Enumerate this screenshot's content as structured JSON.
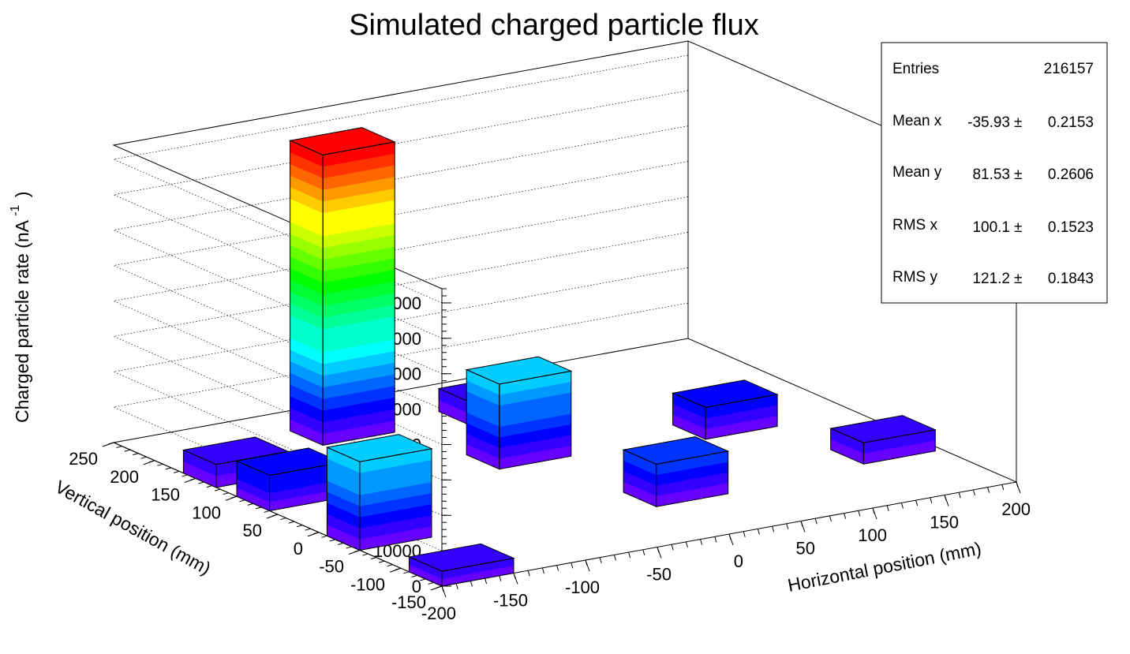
{
  "chart_data": {
    "type": "lego3d",
    "title": "Simulated charged particle flux",
    "xlabel": "Horizontal position (mm)",
    "ylabel": "Vertical position (mm)",
    "zlabel": "Charged particle rate (nA",
    "zlabel_sup": "-1",
    "zlabel_close": ")",
    "x_ticks": [
      "-200",
      "-150",
      "-100",
      "-50",
      "0",
      "50",
      "100",
      "150",
      "200"
    ],
    "y_ticks": [
      "-150",
      "-100",
      "-50",
      "0",
      "50",
      "100",
      "150",
      "200",
      "250"
    ],
    "z_ticks": [
      "0",
      "10000",
      "20000",
      "30000",
      "40000",
      "50000",
      "60000",
      "70000",
      "80000"
    ],
    "xlim": [
      -200,
      200
    ],
    "ylim": [
      -150,
      250
    ],
    "zlim": [
      0,
      84000
    ],
    "bins": [
      {
        "x": [
          -200,
          -150
        ],
        "y": [
          125,
          165
        ],
        "value": 6500
      },
      {
        "x": [
          -200,
          -150
        ],
        "y": [
          60,
          100
        ],
        "value": 10000
      },
      {
        "x": [
          -200,
          -150
        ],
        "y": [
          -50,
          -10
        ],
        "value": 25000
      },
      {
        "x": [
          -200,
          -150
        ],
        "y": [
          -150,
          -110
        ],
        "value": 4200
      },
      {
        "x": [
          -100,
          -50
        ],
        "y": [
          170,
          210
        ],
        "value": 82000
      },
      {
        "x": [
          -5,
          45
        ],
        "y": [
          155,
          195
        ],
        "value": 6500
      },
      {
        "x": [
          -40,
          10
        ],
        "y": [
          60,
          100
        ],
        "value": 24000
      },
      {
        "x": [
          -5,
          45
        ],
        "y": [
          -70,
          -30
        ],
        "value": 12000
      },
      {
        "x": [
          95,
          145
        ],
        "y": [
          45,
          85
        ],
        "value": 9000
      },
      {
        "x": [
          145,
          195
        ],
        "y": [
          -60,
          -20
        ],
        "value": 6000
      }
    ],
    "grid": true,
    "palette": [
      "#6600ff",
      "#3300ff",
      "#0000ff",
      "#0033ff",
      "#0066ff",
      "#0099ff",
      "#00ccff",
      "#00ffff",
      "#00ffcc",
      "#00ff99",
      "#00ff66",
      "#00ff33",
      "#00ff00",
      "#33ff00",
      "#66ff00",
      "#99ff00",
      "#ccff00",
      "#ffff00",
      "#ffcc00",
      "#ff9900",
      "#ff6600",
      "#ff3300",
      "#ff0000"
    ],
    "stats": {
      "entries_label": "Entries",
      "entries": "216157",
      "mean_x_label": "Mean x",
      "mean_x": "-35.93",
      "mean_x_err": "0.2153",
      "mean_y_label": "Mean y",
      "mean_y": "81.53",
      "mean_y_err": "0.2606",
      "rms_x_label": "RMS x",
      "rms_x": "100.1",
      "rms_x_err": "0.1523",
      "rms_y_label": "RMS y",
      "rms_y": "121.2",
      "rms_y_err": "0.1843",
      "pm": "±"
    }
  }
}
